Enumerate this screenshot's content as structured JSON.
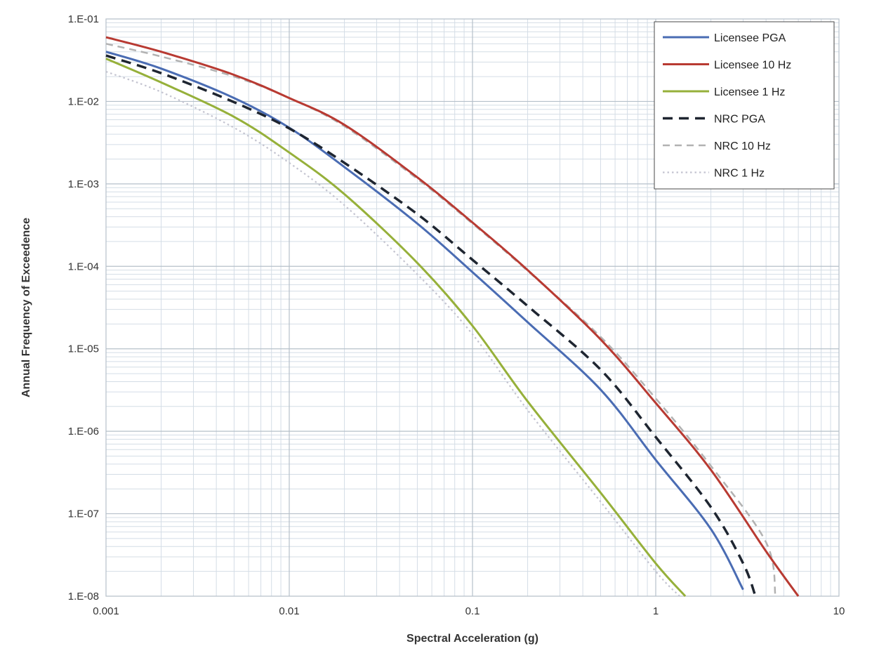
{
  "chart_data": {
    "type": "line",
    "xlabel": "Spectral Acceleration (g)",
    "ylabel": "Annual Frequency of Exceedence",
    "xscale": "log",
    "yscale": "log",
    "xlim": [
      0.001,
      10
    ],
    "ylim": [
      1e-08,
      0.1
    ],
    "x_ticks": [
      0.001,
      0.01,
      0.1,
      1,
      10
    ],
    "x_tick_labels": [
      "0.001",
      "0.01",
      "0.1",
      "1",
      "10"
    ],
    "y_ticks": [
      0.1,
      0.01,
      0.001,
      0.0001,
      1e-05,
      1e-06,
      1e-07,
      1e-08
    ],
    "y_tick_labels": [
      "1.E-01",
      "1.E-02",
      "1.E-03",
      "1.E-04",
      "1.E-05",
      "1.E-06",
      "1.E-07",
      "1.E-08"
    ],
    "grid": true,
    "legend_position": "top-right",
    "series": [
      {
        "name": "Licensee PGA",
        "color": "#4a6cb3",
        "style": "solid",
        "x": [
          0.001,
          0.002,
          0.005,
          0.01,
          0.02,
          0.05,
          0.1,
          0.2,
          0.5,
          1,
          2,
          3
        ],
        "y": [
          0.04,
          0.025,
          0.011,
          0.0048,
          0.0016,
          0.00033,
          8.5e-05,
          2.1e-05,
          3.2e-06,
          4.5e-07,
          6.5e-08,
          1.2e-08
        ]
      },
      {
        "name": "Licensee 10 Hz",
        "color": "#b83a32",
        "style": "solid",
        "x": [
          0.001,
          0.002,
          0.005,
          0.01,
          0.02,
          0.05,
          0.1,
          0.2,
          0.5,
          1,
          2,
          4,
          6
        ],
        "y": [
          0.06,
          0.04,
          0.021,
          0.011,
          0.0052,
          0.0012,
          0.00034,
          9e-05,
          1.3e-05,
          2.2e-06,
          3.4e-07,
          3.5e-08,
          1e-08
        ]
      },
      {
        "name": "Licensee 1 Hz",
        "color": "#96b03a",
        "style": "solid",
        "x": [
          0.001,
          0.002,
          0.005,
          0.01,
          0.02,
          0.05,
          0.1,
          0.2,
          0.5,
          1,
          1.45
        ],
        "y": [
          0.033,
          0.017,
          0.0065,
          0.0024,
          0.00075,
          0.00011,
          1.9e-05,
          2.3e-06,
          1.8e-07,
          2.5e-08,
          1e-08
        ]
      },
      {
        "name": "NRC PGA",
        "color": "#1e2530",
        "style": "dashed",
        "x": [
          0.001,
          0.002,
          0.005,
          0.01,
          0.02,
          0.05,
          0.1,
          0.2,
          0.5,
          1,
          2,
          3,
          3.5
        ],
        "y": [
          0.036,
          0.022,
          0.0098,
          0.0047,
          0.0018,
          0.00043,
          0.00012,
          3.3e-05,
          5.6e-06,
          8.5e-07,
          1.2e-07,
          2.5e-08,
          1e-08
        ]
      },
      {
        "name": "NRC 10 Hz",
        "color": "#b2b2b2",
        "style": "dashed",
        "x": [
          0.001,
          0.002,
          0.005,
          0.01,
          0.02,
          0.05,
          0.1,
          0.2,
          0.5,
          1,
          2,
          4,
          4.5
        ],
        "y": [
          0.05,
          0.035,
          0.02,
          0.011,
          0.005,
          0.00115,
          0.00033,
          8.8e-05,
          1.4e-05,
          2.5e-06,
          3.8e-07,
          4.5e-08,
          1e-08
        ]
      },
      {
        "name": "NRC 1 Hz",
        "color": "#c4c4d0",
        "style": "dotted",
        "x": [
          0.001,
          0.002,
          0.005,
          0.01,
          0.02,
          0.05,
          0.1,
          0.2,
          0.5,
          1,
          1.35
        ],
        "y": [
          0.023,
          0.013,
          0.0048,
          0.0018,
          0.00055,
          8e-05,
          1.5e-05,
          1.8e-06,
          1.4e-07,
          2e-08,
          1e-08
        ]
      }
    ]
  }
}
